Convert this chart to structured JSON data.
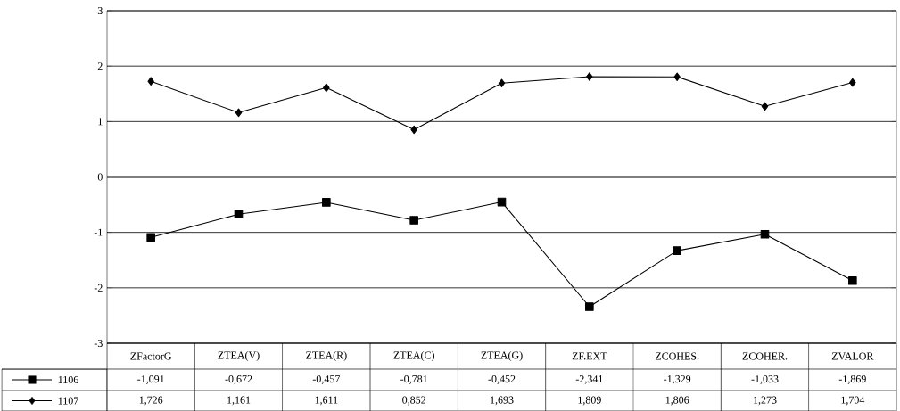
{
  "chart_data": {
    "type": "line",
    "categories": [
      "ZFactorG",
      "ZTEA(V)",
      "ZTEA(R)",
      "ZTEA(C)",
      "ZTEA(G)",
      "ZF.EXT",
      "ZCOHES.",
      "ZCOHER.",
      "ZVALOR"
    ],
    "series": [
      {
        "name": "1106",
        "color": "#000000",
        "marker": "square",
        "values": [
          -1.091,
          -0.672,
          -0.457,
          -0.781,
          -0.452,
          -2.341,
          -1.329,
          -1.033,
          -1.869
        ],
        "value_labels": [
          "-1,091",
          "-0,672",
          "-0,457",
          "-0,781",
          "-0,452",
          "-2,341",
          "-1,329",
          "-1,033",
          "-1,869"
        ]
      },
      {
        "name": "1107",
        "color": "#000000",
        "marker": "diamond",
        "values": [
          1.726,
          1.161,
          1.611,
          0.852,
          1.693,
          1.809,
          1.806,
          1.273,
          1.704
        ],
        "value_labels": [
          "1,726",
          "1,161",
          "1,611",
          "0,852",
          "1,693",
          "1,809",
          "1,806",
          "1,273",
          "1,704"
        ]
      }
    ],
    "ylim": [
      -3,
      3
    ],
    "yticks": [
      -3,
      -2,
      -1,
      0,
      1,
      2,
      3
    ],
    "grid": "y",
    "legend": "bottom",
    "ref_lines": [
      {
        "axis": "y",
        "value": 0
      }
    ]
  }
}
